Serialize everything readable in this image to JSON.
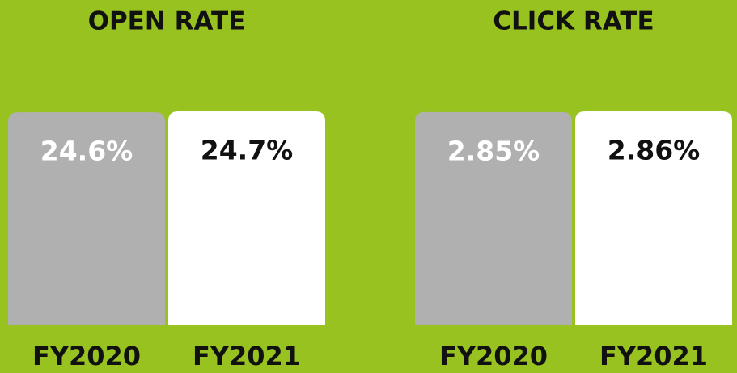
{
  "chart_data": [
    {
      "type": "bar",
      "title": "OPEN RATE",
      "categories": [
        "FY2020",
        "FY2021"
      ],
      "values": [
        24.6,
        24.7
      ],
      "value_labels": [
        "24.6%",
        "24.7%"
      ],
      "colors": [
        "#b0b0b0",
        "#ffffff"
      ],
      "label_colors": [
        "#ffffff",
        "#111111"
      ]
    },
    {
      "type": "bar",
      "title": "CLICK RATE",
      "categories": [
        "FY2020",
        "FY2021"
      ],
      "values": [
        2.85,
        2.86
      ],
      "value_labels": [
        "2.85%",
        "2.86%"
      ],
      "colors": [
        "#b0b0b0",
        "#ffffff"
      ],
      "label_colors": [
        "#ffffff",
        "#111111"
      ]
    }
  ]
}
